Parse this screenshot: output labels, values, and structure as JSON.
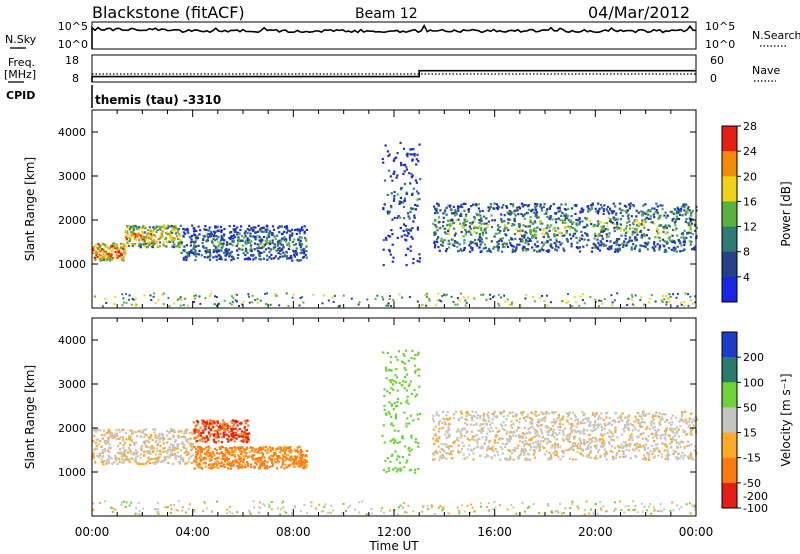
{
  "header": {
    "station": "Blackstone (fitACF)",
    "beam": "Beam 12",
    "date": "04/Mar/2012"
  },
  "params": {
    "nsky_label": "N.Sky",
    "nsearch_label": "N.Search",
    "freq_label_1": "Freq.",
    "freq_label_2": "[MHz]",
    "nave_label": "Nave",
    "cpid_label": "CPID",
    "cpid_value": "themis (tau) -3310",
    "noise_left_ticks": [
      "10^5",
      "10^0"
    ],
    "noise_right_ticks": [
      "10^5",
      "10^0"
    ],
    "freq_left_ticks": [
      "18",
      "8"
    ],
    "freq_right_ticks": [
      "60",
      "0"
    ]
  },
  "xaxis": {
    "label": "Time UT",
    "ticks": [
      "00:00",
      "04:00",
      "08:00",
      "12:00",
      "16:00",
      "20:00",
      "00:00"
    ],
    "range_hours": [
      0,
      24
    ]
  },
  "power_panel": {
    "ylabel": "Slant Range [km]",
    "yticks": [
      "1000",
      "2000",
      "3000",
      "4000"
    ],
    "colorbar_label": "Power [dB]",
    "colorbar_ticks": [
      "4",
      "8",
      "12",
      "16",
      "20",
      "24",
      "28"
    ],
    "colorbar_colors": [
      "#1a26e6",
      "#27408c",
      "#2e7a74",
      "#59b23c",
      "#f0d21a",
      "#f28a0c",
      "#e61e14"
    ]
  },
  "velocity_panel": {
    "ylabel": "Slant Range [km]",
    "yticks": [
      "1000",
      "2000",
      "3000",
      "4000"
    ],
    "colorbar_label": "Velocity [m s⁻¹]",
    "colorbar_ticks": [
      "200",
      "100",
      "50",
      "15",
      "-15",
      "-50",
      "-100",
      "-200"
    ],
    "colorbar_colors": [
      "#1e3ccc",
      "#2a7a6e",
      "#6fd23a",
      "#c6c6c0",
      "#ffaa2a",
      "#ff7a10",
      "#e61e14"
    ]
  },
  "chart_data": [
    {
      "type": "line",
      "name": "noise-and-frequency",
      "x_unit": "hours UT",
      "nsky_level_log10": 4,
      "tx_freq_MHz": [
        {
          "x": [
            0,
            13
          ],
          "y": 10
        },
        {
          "x": [
            13,
            24
          ],
          "y": 12.2
        }
      ],
      "nave": 0
    },
    {
      "type": "heatmap",
      "name": "power",
      "x_range_hours": [
        0,
        24
      ],
      "y_range_km": [
        0,
        4500
      ],
      "scatter_bands": [
        {
          "t": [
            0,
            1.3
          ],
          "r": [
            1100,
            1500
          ],
          "value": 26
        },
        {
          "t": [
            1.3,
            3.5
          ],
          "r": [
            1400,
            1900
          ],
          "value": 22
        },
        {
          "t": [
            3.5,
            8.5
          ],
          "r": [
            1100,
            1900
          ],
          "value": 12
        },
        {
          "t": [
            11.5,
            13.0
          ],
          "r": [
            1000,
            3800
          ],
          "value": 9
        },
        {
          "t": [
            13.5,
            24
          ],
          "r": [
            1300,
            2400
          ],
          "value": 15
        }
      ]
    },
    {
      "type": "heatmap",
      "name": "velocity",
      "x_range_hours": [
        0,
        24
      ],
      "y_range_km": [
        0,
        4500
      ],
      "scatter_bands": [
        {
          "t": [
            0,
            4.0
          ],
          "r": [
            1200,
            2000
          ],
          "value": -10
        },
        {
          "t": [
            4.0,
            6.2
          ],
          "r": [
            1700,
            2200
          ],
          "value": -150
        },
        {
          "t": [
            4.0,
            8.5
          ],
          "r": [
            1100,
            1600
          ],
          "value": -60
        },
        {
          "t": [
            11.5,
            13.0
          ],
          "r": [
            1000,
            3800
          ],
          "value": 40
        },
        {
          "t": [
            13.5,
            24
          ],
          "r": [
            1300,
            2400
          ],
          "value": -5
        }
      ]
    }
  ]
}
